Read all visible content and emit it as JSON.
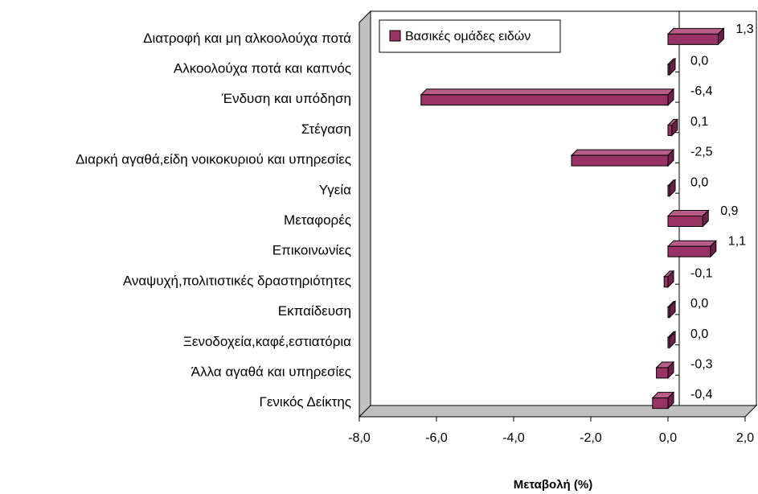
{
  "chart_data": {
    "type": "bar",
    "orientation": "horizontal",
    "categories": [
      "Διατροφή και μη αλκοολούχα ποτά",
      "Αλκοολούχα ποτά και καπνός",
      "Ένδυση και υπόδηση",
      "Στέγαση",
      "Διαρκή αγαθά,είδη νοικοκυριού και υπηρεσίες",
      "Υγεία",
      "Μεταφορές",
      "Επικοινωνίες",
      "Αναψυχή,πολιτιστικές δραστηριότητες",
      "Εκπαίδευση",
      "Ξενοδοχεία,καφέ,εστιατόρια",
      "Άλλα αγαθά και υπηρεσίες",
      "Γενικός Δείκτης"
    ],
    "series": [
      {
        "name": "Βασικές ομάδες ειδών",
        "values": [
          1.3,
          0.0,
          -6.4,
          0.1,
          -2.5,
          0.0,
          0.9,
          1.1,
          -0.1,
          0.0,
          0.0,
          -0.3,
          -0.4
        ],
        "labels": [
          "1,3",
          "0,0",
          "-6,4",
          "0,1",
          "-2,5",
          "0,0",
          "0,9",
          "1,1",
          "-0,1",
          "0,0",
          "0,0",
          "-0,3",
          "-0,4"
        ]
      }
    ],
    "xlabel": "Μεταβολή (%)",
    "xlim": [
      -8.0,
      2.0
    ],
    "xticks": [
      -8.0,
      -6.0,
      -4.0,
      -2.0,
      0.0,
      2.0
    ],
    "xtick_labels": [
      "-8,0",
      "-6,0",
      "-4,0",
      "-2,0",
      "0,0",
      "2,0"
    ],
    "grid": false,
    "legend_position": "top-left",
    "colors": {
      "bar_front": "#993366",
      "bar_top": "#b85c8a",
      "bar_side": "#6b2248",
      "wall": "#c0c0c0"
    }
  }
}
